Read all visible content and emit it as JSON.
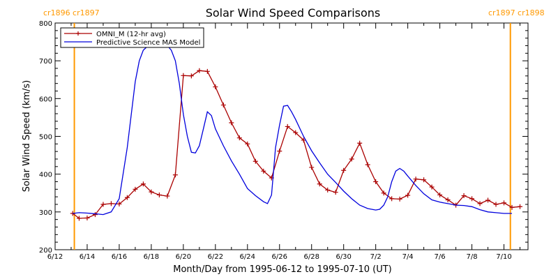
{
  "chart_data": {
    "type": "line",
    "title": "Solar Wind Speed Comparisons",
    "xlabel": "Month/Day from 1995-06-12 to 1995-07-10 (UT)",
    "ylabel": "Solar Wind Speed (km/s)",
    "ylim": [
      200,
      800
    ],
    "xlim_days": [
      0,
      29.5
    ],
    "y_ticks": [
      200,
      300,
      400,
      500,
      600,
      700,
      800
    ],
    "x_ticks": [
      {
        "day": 0,
        "label": "6/12"
      },
      {
        "day": 2,
        "label": "6/14"
      },
      {
        "day": 4,
        "label": "6/16"
      },
      {
        "day": 6,
        "label": "6/18"
      },
      {
        "day": 8,
        "label": "6/20"
      },
      {
        "day": 10,
        "label": "6/22"
      },
      {
        "day": 12,
        "label": "6/24"
      },
      {
        "day": 14,
        "label": "6/26"
      },
      {
        "day": 16,
        "label": "6/28"
      },
      {
        "day": 18,
        "label": "6/30"
      },
      {
        "day": 20,
        "label": "7/2"
      },
      {
        "day": 22,
        "label": "7/4"
      },
      {
        "day": 24,
        "label": "7/6"
      },
      {
        "day": 26,
        "label": "7/8"
      },
      {
        "day": 28,
        "label": "7/10"
      }
    ],
    "legend_position": "top-left",
    "series": [
      {
        "name": "OMNI_M (12-hr avg)",
        "color": "#aa0000",
        "marker": "plus",
        "x": [
          1.1,
          1.5,
          2.0,
          2.5,
          3.0,
          3.5,
          4.0,
          4.5,
          5.0,
          5.5,
          6.0,
          6.5,
          7.0,
          7.5,
          8.0,
          8.5,
          9.0,
          9.5,
          10.0,
          10.5,
          11.0,
          11.5,
          12.0,
          12.5,
          13.0,
          13.5,
          14.0,
          14.5,
          15.0,
          15.5,
          16.0,
          16.5,
          17.0,
          17.5,
          18.0,
          18.5,
          19.0,
          19.5,
          20.0,
          20.5,
          21.0,
          21.5,
          22.0,
          22.5,
          23.0,
          23.5,
          24.0,
          24.5,
          25.0,
          25.5,
          26.0,
          26.5,
          27.0,
          27.5,
          28.0,
          28.5,
          29.0
        ],
        "values": [
          296,
          283,
          284,
          293,
          320,
          322,
          321,
          338,
          360,
          374,
          353,
          345,
          342,
          398,
          661,
          660,
          674,
          672,
          631,
          583,
          536,
          496,
          480,
          434,
          408,
          390,
          461,
          526,
          510,
          490,
          418,
          374,
          358,
          352,
          410,
          440,
          482,
          425,
          380,
          350,
          335,
          334,
          344,
          387,
          385,
          366,
          345,
          332,
          318,
          343,
          335,
          322,
          331,
          320,
          324,
          312,
          314
        ]
      },
      {
        "name": "Predictive Science MAS Model",
        "color": "#0000dd",
        "marker": "none",
        "x": [
          1.1,
          1.5,
          2.0,
          2.5,
          3.0,
          3.5,
          4.0,
          4.5,
          5.0,
          5.25,
          5.5,
          5.75,
          6.0,
          6.25,
          6.5,
          6.75,
          7.0,
          7.25,
          7.5,
          7.75,
          8.0,
          8.25,
          8.5,
          8.75,
          9.0,
          9.25,
          9.5,
          9.75,
          10.0,
          10.5,
          11.0,
          11.5,
          12.0,
          12.5,
          13.0,
          13.25,
          13.5,
          13.75,
          14.0,
          14.25,
          14.5,
          14.75,
          15.0,
          15.5,
          16.0,
          16.5,
          17.0,
          17.5,
          18.0,
          18.5,
          19.0,
          19.5,
          20.0,
          20.25,
          20.5,
          20.75,
          21.0,
          21.25,
          21.5,
          21.75,
          22.0,
          22.5,
          23.0,
          23.5,
          24.0,
          24.5,
          25.0,
          25.5,
          26.0,
          26.5,
          27.0,
          27.5,
          28.0,
          28.5
        ],
        "values": [
          296,
          298,
          297,
          295,
          293,
          300,
          335,
          470,
          645,
          700,
          728,
          738,
          741,
          741,
          741,
          741,
          740,
          728,
          700,
          640,
          558,
          500,
          458,
          456,
          475,
          520,
          565,
          555,
          520,
          475,
          435,
          400,
          362,
          343,
          327,
          322,
          345,
          470,
          530,
          580,
          582,
          565,
          545,
          500,
          462,
          430,
          400,
          378,
          355,
          335,
          318,
          309,
          305,
          307,
          318,
          340,
          380,
          408,
          415,
          408,
          395,
          370,
          348,
          332,
          326,
          322,
          318,
          317,
          314,
          306,
          300,
          298,
          296,
          296
        ]
      }
    ],
    "annotations": [
      {
        "day": 1.2,
        "label": "cr1896 cr1897",
        "color": "#ff9900"
      },
      {
        "day": 28.4,
        "label": "cr1897 cr1898",
        "color": "#ff9900"
      }
    ]
  }
}
